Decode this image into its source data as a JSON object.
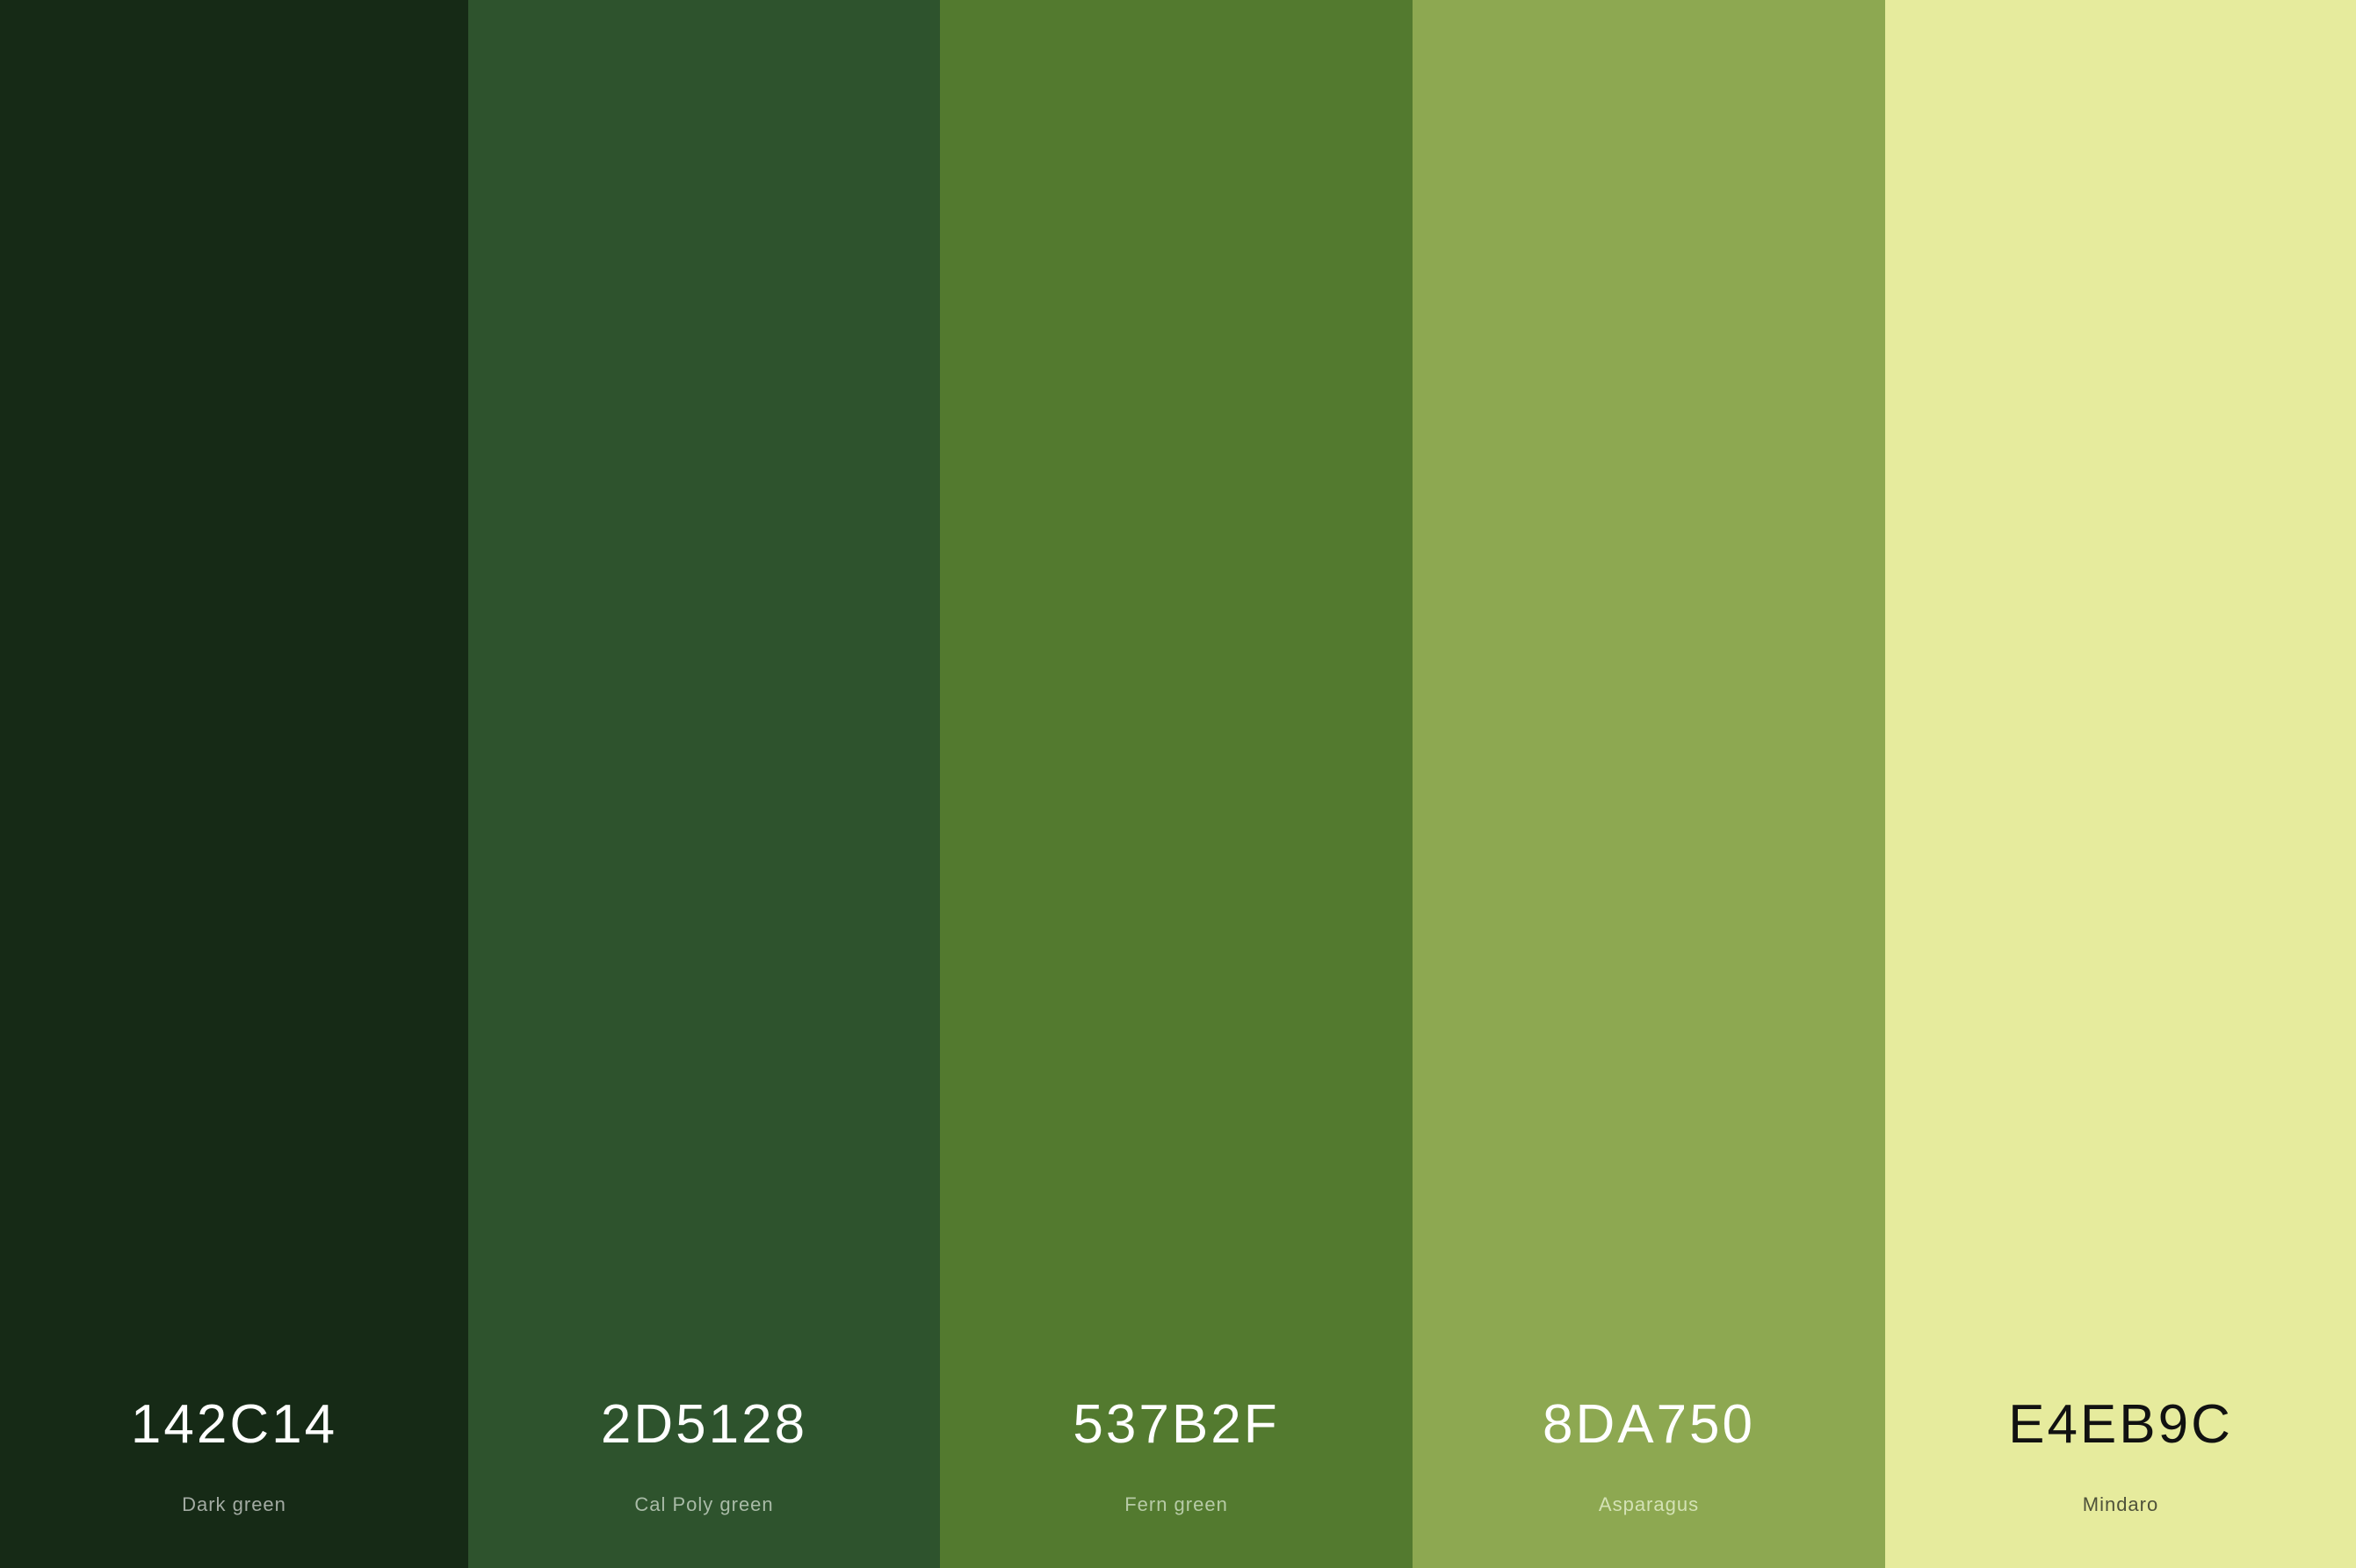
{
  "swatches": [
    {
      "hex": "142C14",
      "name": "Dark green",
      "color": "#162A16",
      "hex_text_color": "#FFFFFF",
      "name_text_color": "#A3ABA3"
    },
    {
      "hex": "2D5128",
      "name": "Cal Poly green",
      "color": "#2E532D",
      "hex_text_color": "#FFFFFF",
      "name_text_color": "#A9BBA7"
    },
    {
      "hex": "537B2F",
      "name": "Fern green",
      "color": "#537A2F",
      "hex_text_color": "#FFFFFF",
      "name_text_color": "#B7CBA6"
    },
    {
      "hex": "8DA750",
      "name": "Asparagus",
      "color": "#8DA851",
      "hex_text_color": "#FFFFFF",
      "name_text_color": "#D4E2B5"
    },
    {
      "hex": "E4EB9C",
      "name": "Mindaro",
      "color": "#E6EB9D",
      "hex_text_color": "#111111",
      "name_text_color": "#4E5139"
    }
  ]
}
